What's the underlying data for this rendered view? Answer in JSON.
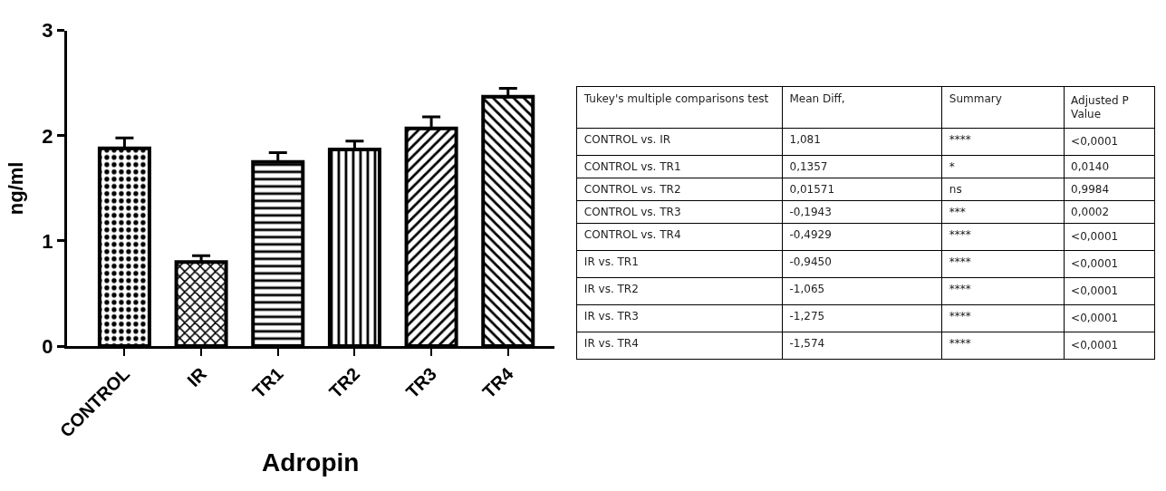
{
  "chart_data": [
    {
      "type": "bar",
      "xlabel": "Adropin",
      "ylabel": "ng/ml",
      "categories": [
        "CONTROL",
        "IR",
        "TR1",
        "TR2",
        "TR3",
        "TR4"
      ],
      "values": [
        1.88,
        0.8,
        1.75,
        1.87,
        2.07,
        2.37
      ],
      "errors": [
        [
          1.88,
          1.98
        ],
        [
          0.8,
          0.86
        ],
        [
          1.75,
          1.84
        ],
        [
          1.87,
          1.95
        ],
        [
          2.07,
          2.18
        ],
        [
          2.37,
          2.45
        ]
      ],
      "color": "#000000",
      "ylim": [
        0,
        3
      ],
      "yticks": [
        0,
        1,
        2,
        3
      ]
    },
    {
      "type": "other",
      "annotations": [
        "Tukey's multiple comparisons test",
        "Mean Diff,",
        "Summary",
        "Adjusted P Value",
        "CONTROL vs. IR",
        "1,081",
        "****",
        "<0,0001",
        "CONTROL vs. TR1",
        "0,1357",
        "*",
        "0,0140",
        "CONTROL vs. TR2",
        "0,01571",
        "ns",
        "0,9984",
        "CONTROL vs. TR3",
        "-0,1943",
        "***",
        "0,0002",
        "CONTROL vs. TR4",
        "-0,4929",
        "****",
        "<0,0001",
        "IR vs. TR1",
        "-0,9450",
        "****",
        "<0,0001",
        "IR vs. TR2",
        "-1,065",
        "****",
        "<0,0001",
        "IR vs. TR3",
        "-1,275",
        "****",
        "<0,0001",
        "IR vs. TR4",
        "-1,574",
        "****",
        "<0,0001"
      ]
    }
  ]
}
